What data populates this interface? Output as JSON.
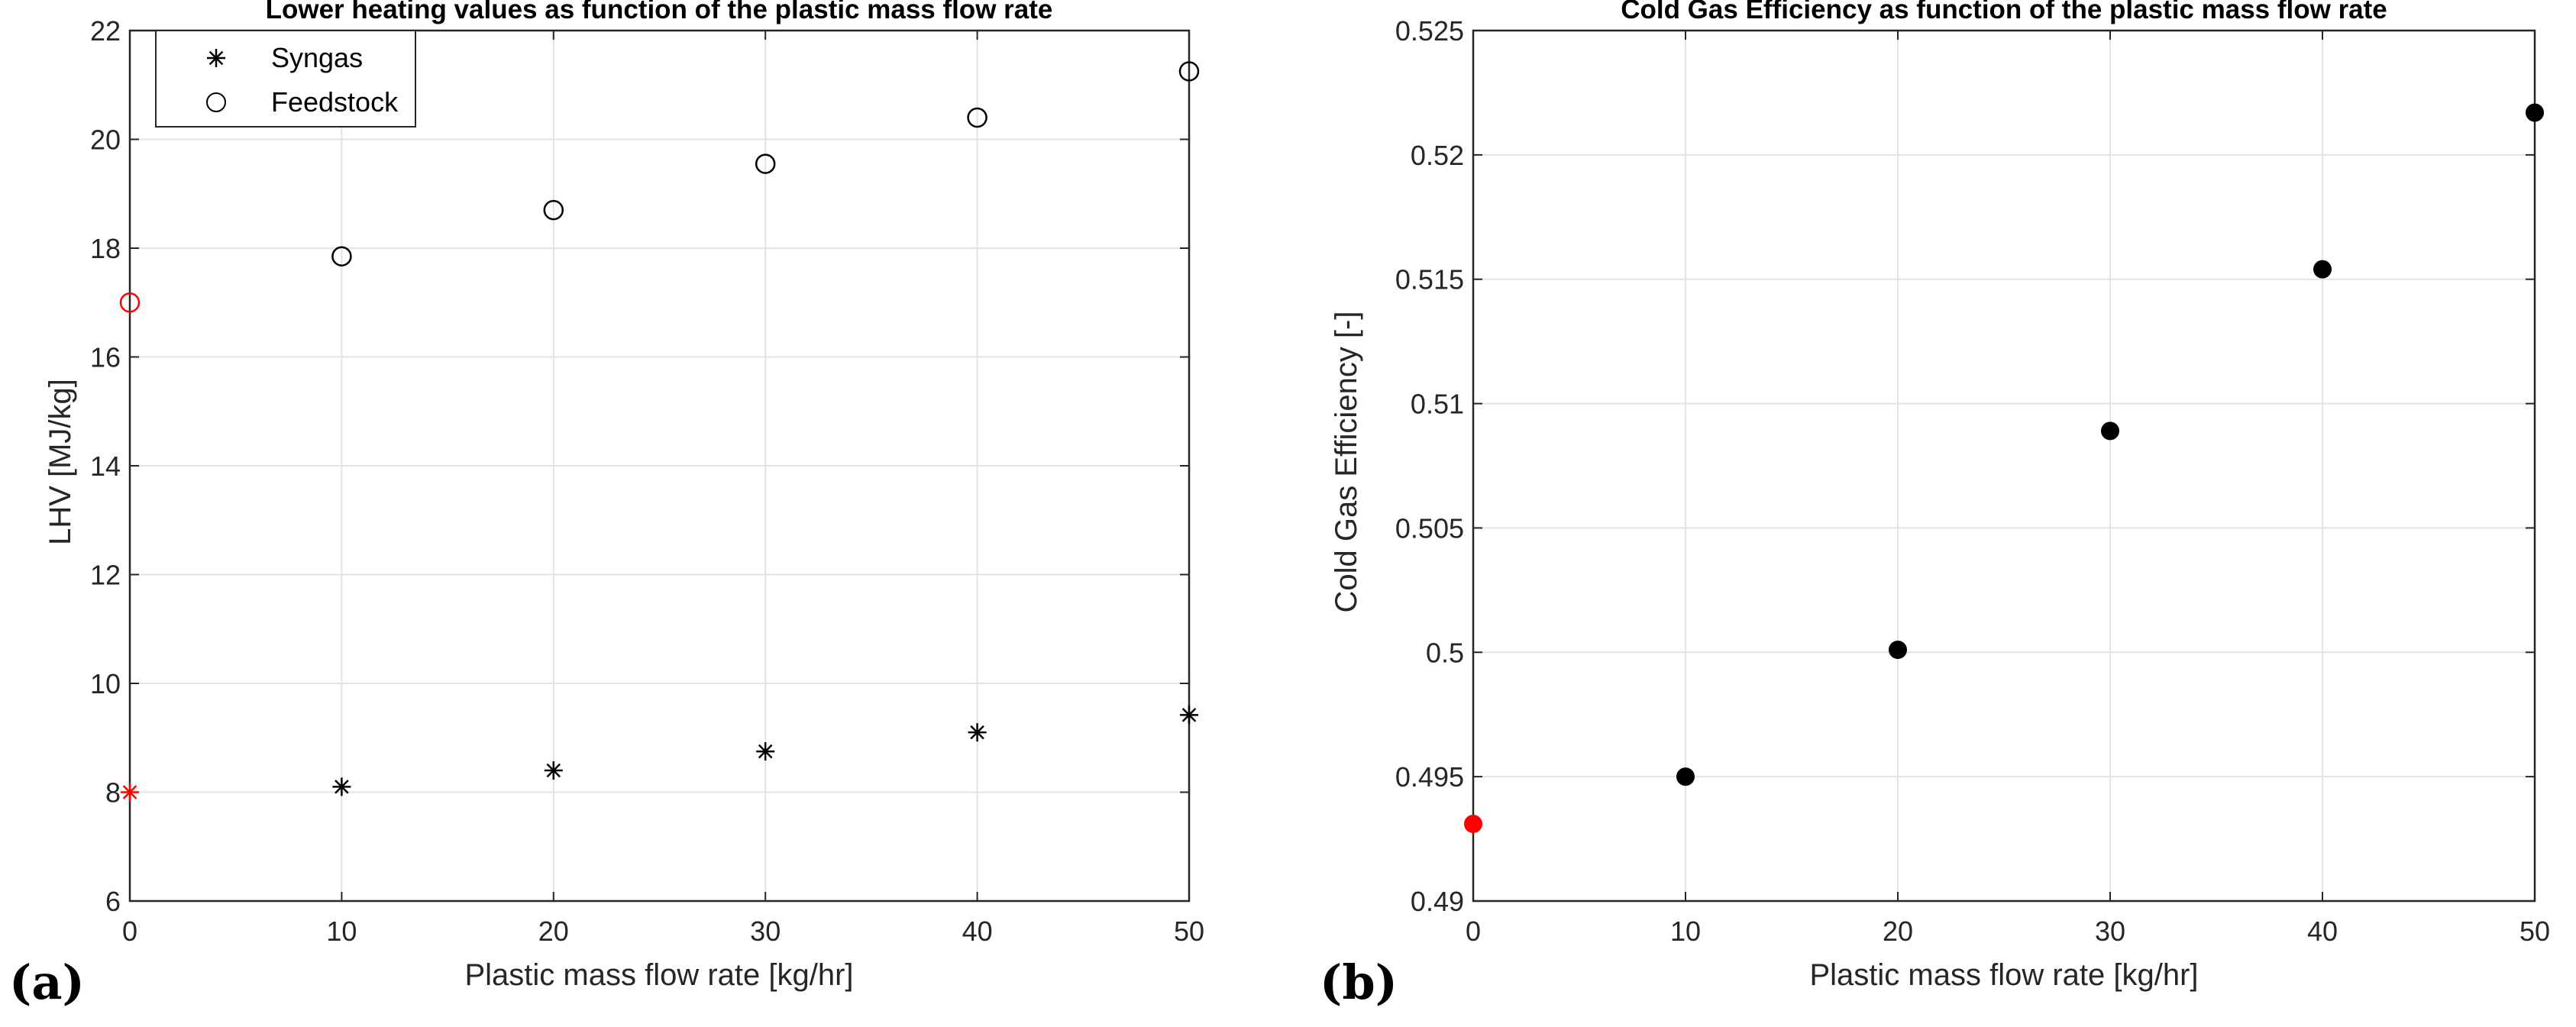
{
  "chart_data": [
    {
      "type": "scatter",
      "panel_label": "(a)",
      "title": "Lower heating values as function of the plastic mass flow rate",
      "xlabel": "Plastic mass flow rate [kg/hr]",
      "ylabel": "LHV [MJ/kg]",
      "xlim": [
        0,
        50
      ],
      "ylim": [
        6,
        22
      ],
      "xticks": [
        "0",
        "10",
        "20",
        "30",
        "40",
        "50"
      ],
      "yticks": [
        "6",
        "8",
        "10",
        "12",
        "14",
        "16",
        "18",
        "20",
        "22"
      ],
      "grid": true,
      "legend": {
        "placement": "top-left",
        "entries": [
          "Syngas",
          "Feedstock"
        ]
      },
      "highlight_color": "#ff0000",
      "series_color": "#000000",
      "series": [
        {
          "name": "Syngas",
          "marker": "asterisk",
          "x": [
            0,
            10,
            20,
            30,
            40,
            50
          ],
          "y": [
            8.0,
            8.1,
            8.4,
            8.75,
            9.1,
            9.42
          ],
          "highlight_first": true
        },
        {
          "name": "Feedstock",
          "marker": "open-circle",
          "x": [
            0,
            10,
            20,
            30,
            40,
            50
          ],
          "y": [
            17.0,
            17.85,
            18.7,
            19.55,
            20.4,
            21.25
          ],
          "highlight_first": true
        }
      ]
    },
    {
      "type": "scatter",
      "panel_label": "(b)",
      "title": "Cold Gas Efficiency as function of the plastic mass flow rate",
      "xlabel": "Plastic mass flow rate [kg/hr]",
      "ylabel": "Cold Gas Efficiency [-]",
      "xlim": [
        0,
        50
      ],
      "ylim": [
        0.49,
        0.525
      ],
      "xticks": [
        "0",
        "10",
        "20",
        "30",
        "40",
        "50"
      ],
      "yticks": [
        "0.49",
        "0.495",
        "0.5",
        "0.505",
        "0.51",
        "0.515",
        "0.52",
        "0.525"
      ],
      "grid": true,
      "highlight_color": "#ff0000",
      "series_color": "#000000",
      "series": [
        {
          "name": "Cold Gas Efficiency",
          "marker": "filled-circle",
          "x": [
            0,
            10,
            20,
            30,
            40,
            50
          ],
          "y": [
            0.4931,
            0.495,
            0.5001,
            0.5089,
            0.5154,
            0.5217
          ],
          "highlight_first": true
        }
      ]
    }
  ]
}
